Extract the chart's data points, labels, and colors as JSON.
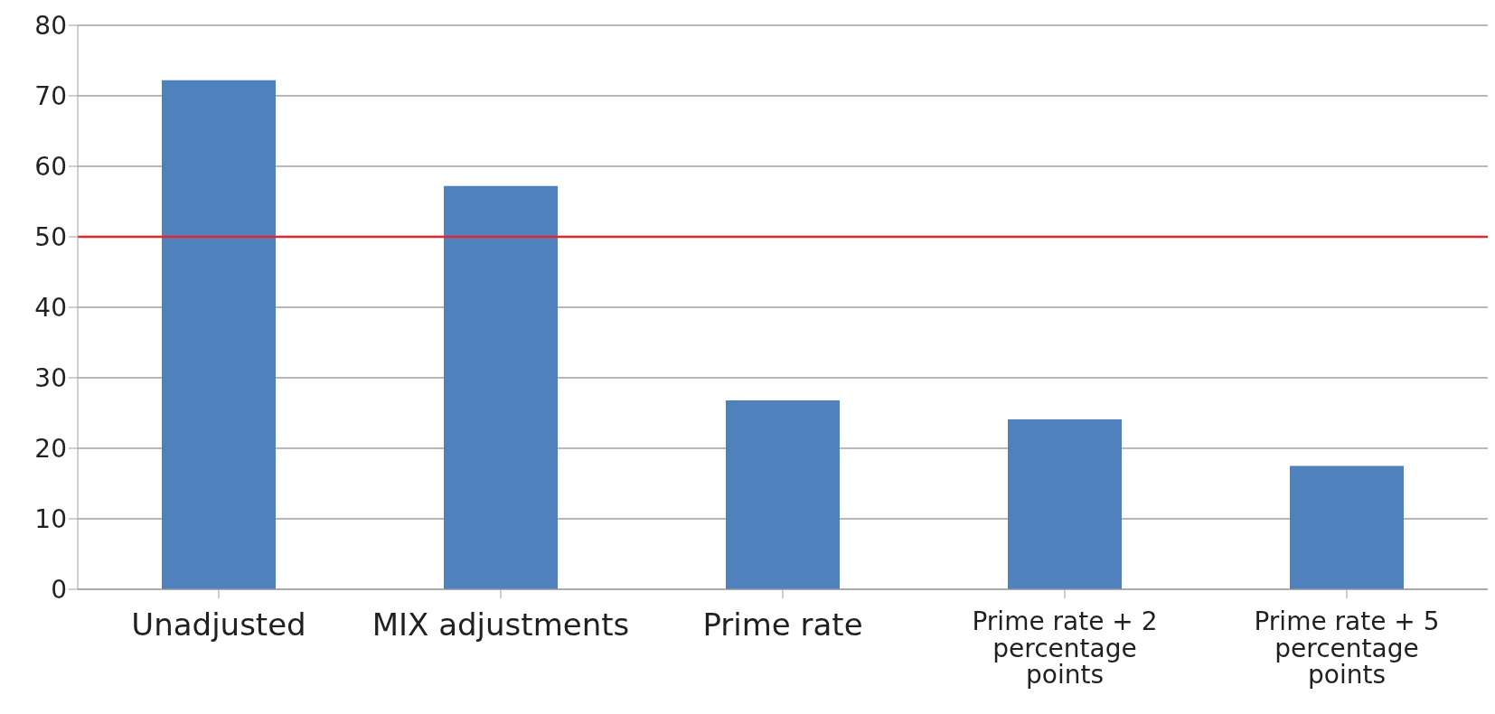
{
  "chart_data": {
    "type": "bar",
    "categories": [
      "Unadjusted",
      "MIX adjustments",
      "Prime rate",
      "Prime rate + 2 percentage points",
      "Prime rate + 5 percentage points"
    ],
    "values": [
      72.2,
      57.2,
      26.8,
      24.1,
      17.5
    ],
    "color": "#4f81bd",
    "ylim": [
      0,
      80
    ],
    "yticks": [
      0,
      10,
      20,
      30,
      40,
      50,
      60,
      70,
      80
    ],
    "grid": "y",
    "ref_lines": [
      {
        "axis": "y",
        "value": 50,
        "color": "#e3262c"
      }
    ]
  }
}
